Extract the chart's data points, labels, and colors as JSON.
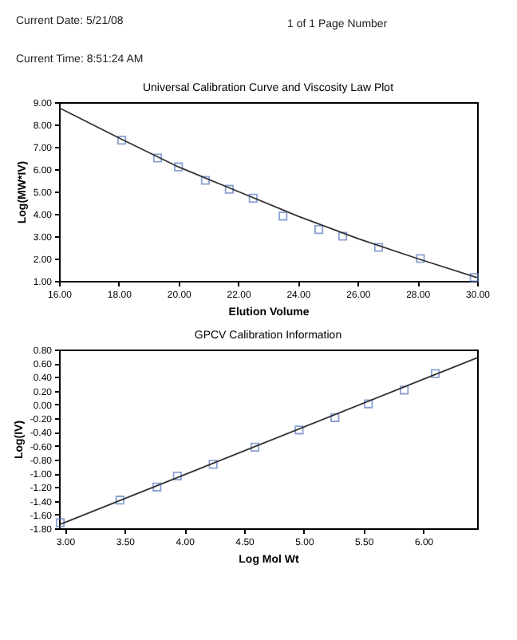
{
  "chart_data": [
    {
      "type": "scatter",
      "title": "Universal Calibration Curve and Viscosity Law Plot",
      "xlabel": "Elution Volume",
      "ylabel": "Log(MW*IV)",
      "annotations": [
        "Current Date: 5/21/08",
        "1 of 1 Page Number",
        "Current Time: 8:51:24 AM"
      ],
      "marker": "square",
      "grid": false,
      "xlim": [
        16,
        30
      ],
      "xticks": [
        {
          "value": 16,
          "label": "16.00"
        },
        {
          "value": 18,
          "label": "18.00"
        },
        {
          "value": 20,
          "label": "20.00"
        },
        {
          "value": 22,
          "label": "22.00"
        },
        {
          "value": 24,
          "label": "24.00"
        },
        {
          "value": 26,
          "label": "26.00"
        },
        {
          "value": 28,
          "label": "28.00"
        },
        {
          "value": 30,
          "label": "30.00"
        }
      ],
      "ylim": [
        1,
        9
      ],
      "yticks": [
        {
          "value": 1,
          "label": "1.00"
        },
        {
          "value": 2,
          "label": "2.00"
        },
        {
          "value": 3,
          "label": "3.00"
        },
        {
          "value": 4,
          "label": "4.00"
        },
        {
          "value": 5,
          "label": "5.00"
        },
        {
          "value": 6,
          "label": "6.00"
        },
        {
          "value": 7,
          "label": "7.00"
        },
        {
          "value": 8,
          "label": "8.00"
        },
        {
          "value": 9,
          "label": "9.00"
        }
      ],
      "series": [
        {
          "type": "scatter",
          "color": "#5a78c0",
          "x": [
            18.1,
            19.3,
            20.0,
            20.9,
            21.7,
            22.5,
            23.5,
            24.7,
            25.5,
            26.7,
            28.1,
            29.9
          ],
          "values": [
            7.3,
            6.5,
            6.1,
            5.5,
            5.1,
            4.7,
            3.9,
            3.3,
            3.0,
            2.5,
            2.0,
            1.15
          ]
        },
        {
          "type": "line",
          "marker": "none",
          "color": "#333333",
          "x": [
            16,
            18,
            20,
            22,
            24,
            26,
            28,
            30
          ],
          "values": [
            8.75,
            7.4,
            6.1,
            5.0,
            3.9,
            2.9,
            2.0,
            1.15
          ]
        }
      ]
    },
    {
      "type": "scatter",
      "title": "GPCV Calibration Information",
      "xlabel": "Log Mol Wt",
      "ylabel": "Log(IV)",
      "marker": "square",
      "grid": false,
      "xlim": [
        2.95,
        6.45
      ],
      "xticks": [
        {
          "value": 3,
          "label": "3.00"
        },
        {
          "value": 3.5,
          "label": "3.50"
        },
        {
          "value": 4,
          "label": "4.00"
        },
        {
          "value": 4.5,
          "label": "4.50"
        },
        {
          "value": 5,
          "label": "5.00"
        },
        {
          "value": 5.5,
          "label": "5.50"
        },
        {
          "value": 6,
          "label": "6.00"
        }
      ],
      "ylim": [
        -1.8,
        0.8
      ],
      "yticks": [
        {
          "value": -1.8,
          "label": "-1.80"
        },
        {
          "value": -1.6,
          "label": "-1.60"
        },
        {
          "value": -1.4,
          "label": "-1.40"
        },
        {
          "value": -1.2,
          "label": "-1.20"
        },
        {
          "value": -1,
          "label": "-1.00"
        },
        {
          "value": -0.8,
          "label": "-0.80"
        },
        {
          "value": -0.6,
          "label": "-0.60"
        },
        {
          "value": -0.4,
          "label": "-0.40"
        },
        {
          "value": -0.2,
          "label": "-0.20"
        },
        {
          "value": 0,
          "label": "0.00"
        },
        {
          "value": 0.2,
          "label": "0.20"
        },
        {
          "value": 0.4,
          "label": "0.40"
        },
        {
          "value": 0.6,
          "label": "0.60"
        },
        {
          "value": 0.8,
          "label": "0.80"
        }
      ],
      "series": [
        {
          "type": "scatter",
          "color": "#5a78c0",
          "x": [
            2.96,
            3.46,
            3.77,
            3.94,
            4.24,
            4.59,
            4.96,
            5.26,
            5.54,
            5.84,
            6.1
          ],
          "values": [
            -1.72,
            -1.39,
            -1.2,
            -1.04,
            -0.87,
            -0.62,
            -0.37,
            -0.19,
            0.01,
            0.21,
            0.45
          ]
        },
        {
          "type": "line",
          "marker": "none",
          "color": "#333333",
          "x": [
            2.95,
            6.45
          ],
          "values": [
            -1.75,
            0.68
          ]
        }
      ]
    }
  ]
}
